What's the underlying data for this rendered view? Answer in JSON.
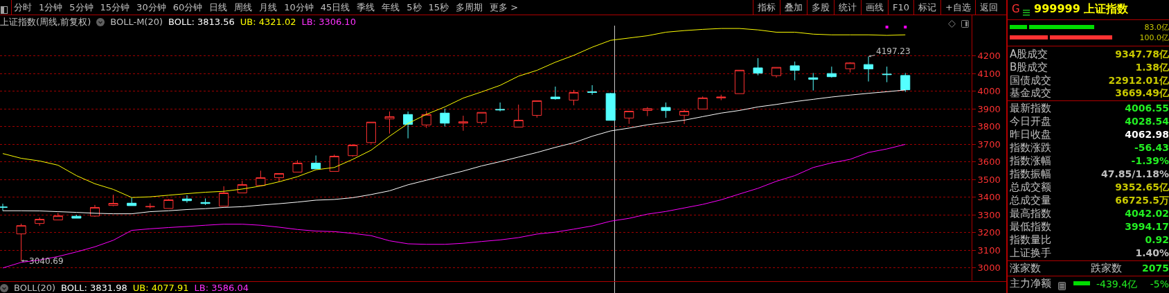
{
  "chart_data": [
    {
      "type": "other",
      "annotations": [
        "分时",
        "1分钟",
        "5分钟",
        "15分钟",
        "30分钟",
        "60分钟",
        "日线",
        "周线",
        "月线",
        "10分钟",
        "45日线",
        "季线",
        "年线",
        "5秒",
        "15秒",
        "多周期",
        "更多 >",
        "指标",
        "叠加",
        "多股",
        "统计",
        "画线",
        "F10",
        "标记",
        "+自选",
        "返回"
      ]
    },
    {
      "type": "candlestick",
      "title": "上证指数(周线,前复权)",
      "categories": [
        null,
        null,
        null,
        null,
        null,
        null,
        null,
        null,
        null,
        null,
        null,
        null,
        null,
        null,
        null,
        null,
        null,
        null,
        null,
        null,
        null,
        null,
        null,
        null,
        null,
        null,
        null,
        null,
        null,
        null,
        null,
        null,
        null,
        null,
        null,
        null,
        null,
        null,
        null,
        null,
        null,
        null,
        null,
        null,
        null,
        null,
        null,
        null,
        null,
        null
      ],
      "ylim": [
        2929,
        4431
      ],
      "yticks": [
        3000,
        3100,
        3200,
        3300,
        3400,
        3500,
        3600,
        3700,
        3800,
        3900,
        4000,
        4100,
        4200
      ],
      "grid": "y",
      "tick_labels": "y",
      "series": [
        {
          "type": "line",
          "color": "#ffff00",
          "values": [
            3648,
            3621,
            3606,
            3582,
            3523,
            3477,
            3445,
            3399,
            3403,
            3412,
            3421,
            3429,
            3434,
            3447,
            3464,
            3488,
            3517,
            3556,
            3569,
            3615,
            3667,
            3746,
            3818,
            3870,
            3912,
            3962,
            3997,
            4034,
            4086,
            4119,
            4165,
            4204,
            4250,
            4289,
            4302,
            4315,
            4335,
            4344,
            4351,
            4356,
            4356,
            4348,
            4335,
            4335,
            4324,
            4320,
            4320,
            4320,
            4317,
            4320
          ]
        },
        {
          "type": "line",
          "color": "#ffffff",
          "values": [
            3324,
            3324,
            3323,
            3319,
            3315,
            3310,
            3307,
            3307,
            3319,
            3324,
            3331,
            3336,
            3343,
            3347,
            3356,
            3364,
            3373,
            3384,
            3388,
            3398,
            3416,
            3437,
            3471,
            3497,
            3523,
            3549,
            3578,
            3602,
            3628,
            3654,
            3683,
            3709,
            3746,
            3776,
            3792,
            3811,
            3824,
            3837,
            3857,
            3877,
            3892,
            3912,
            3926,
            3942,
            3955,
            3968,
            3979,
            3989,
            3998,
            4008
          ]
        },
        {
          "type": "line",
          "color": "#ff00ff",
          "values": [
            3000,
            3032,
            3045,
            3065,
            3091,
            3120,
            3157,
            3213,
            3222,
            3229,
            3235,
            3242,
            3248,
            3248,
            3242,
            3231,
            3218,
            3209,
            3206,
            3196,
            3183,
            3154,
            3137,
            3134,
            3134,
            3140,
            3150,
            3159,
            3172,
            3192,
            3203,
            3220,
            3238,
            3265,
            3281,
            3305,
            3320,
            3340,
            3360,
            3386,
            3419,
            3451,
            3491,
            3523,
            3569,
            3595,
            3615,
            3654,
            3674,
            3700
          ]
        },
        {
          "type": "scatter",
          "color": "#ff00ff",
          "marker": "square",
          "values": [
            null,
            null,
            null,
            null,
            null,
            null,
            null,
            null,
            null,
            null,
            null,
            null,
            null,
            null,
            null,
            null,
            null,
            null,
            null,
            null,
            null,
            null,
            null,
            null,
            null,
            null,
            null,
            null,
            null,
            null,
            null,
            null,
            null,
            null,
            null,
            null,
            null,
            null,
            null,
            null,
            null,
            null,
            null,
            null,
            null,
            null,
            null,
            null,
            4364,
            4364
          ]
        },
        {
          "type": "candlestick",
          "ohlc": [
            [
              3345,
              3364,
              3324,
              3344
            ],
            [
              3193,
              3251,
              3040.69,
              3240
            ],
            [
              3252,
              3286,
              3239,
              3276
            ],
            [
              3272,
              3312,
              3272,
              3295
            ],
            [
              3293,
              3301,
              3282,
              3282
            ],
            [
              3294,
              3357,
              3290,
              3343
            ],
            [
              3354,
              3415,
              3350,
              3366
            ],
            [
              3367,
              3398,
              3353,
              3353
            ],
            [
              3346,
              3366,
              3337,
              3348
            ],
            [
              3337,
              3391,
              3337,
              3386
            ],
            [
              3391,
              3412,
              3370,
              3381
            ],
            [
              3371,
              3394,
              3357,
              3365
            ],
            [
              3350,
              3463,
              3350,
              3425
            ],
            [
              3425,
              3493,
              3425,
              3472
            ],
            [
              3467,
              3551,
              3467,
              3511
            ],
            [
              3511,
              3535,
              3489,
              3535
            ],
            [
              3543,
              3610,
              3543,
              3594
            ],
            [
              3594,
              3637,
              3561,
              3561
            ],
            [
              3547,
              3642,
              3547,
              3633
            ],
            [
              3636,
              3701,
              3631,
              3696
            ],
            [
              3710,
              3826,
              3704,
              3826
            ],
            [
              3844,
              3886,
              3761,
              3857
            ],
            [
              3869,
              3886,
              3734,
              3813
            ],
            [
              3810,
              3888,
              3793,
              3869
            ],
            [
              3877,
              3902,
              3801,
              3820
            ],
            [
              3820,
              3862,
              3777,
              3828
            ],
            [
              3824,
              3881,
              3813,
              3881
            ],
            [
              3898,
              3937,
              3887,
              3895
            ],
            [
              3798,
              3925,
              3798,
              3837
            ],
            [
              3864,
              3947,
              3851,
              3947
            ],
            [
              3968,
              4027,
              3953,
              3958
            ],
            [
              3950,
              4008,
              3921,
              3994
            ],
            [
              3998,
              4035,
              3981,
              3994
            ],
            [
              3988,
              3991,
              3836,
              3836
            ],
            [
              3849,
              3888,
              3816,
              3888
            ],
            [
              3892,
              3911,
              3860,
              3902
            ],
            [
              3909,
              3937,
              3850,
              3891
            ],
            [
              3865,
              3898,
              3815,
              3888
            ],
            [
              3900,
              3971,
              3900,
              3963
            ],
            [
              3963,
              3981,
              3950,
              3968
            ],
            [
              3987,
              4120,
              3987,
              4120
            ],
            [
              4133,
              4188,
              4091,
              4103
            ],
            [
              4089,
              4136,
              4078,
              4136
            ],
            [
              4145,
              4169,
              4063,
              4119
            ],
            [
              4077,
              4104,
              4005,
              4068
            ],
            [
              4101,
              4140,
              4078,
              4083
            ],
            [
              4128,
              4165,
              4107,
              4161
            ],
            [
              4152,
              4197.23,
              4056,
              4127
            ],
            [
              4098,
              4140,
              4052,
              4095
            ],
            [
              4090,
              4104,
              3997,
              4009
            ]
          ],
          "colors": [
            "#54ffff",
            "#ff3232",
            "#ff3232",
            "#ff3232",
            "#54ffff",
            "#ff3232",
            "#ff3232",
            "#54ffff",
            "#ff3232",
            "#ff3232",
            "#54ffff",
            "#54ffff",
            "#ff3232",
            "#ff3232",
            "#ff3232",
            "#ff3232",
            "#ff3232",
            "#54ffff",
            "#ff3232",
            "#ff3232",
            "#ff3232",
            "#ff3232",
            "#54ffff",
            "#ff3232",
            "#54ffff",
            "#ff3232",
            "#ff3232",
            "#54ffff",
            "#ff3232",
            "#ff3232",
            "#54ffff",
            "#ff3232",
            "#54ffff",
            "#54ffff",
            "#ff3232",
            "#ff3232",
            "#54ffff",
            "#ff3232",
            "#ff3232",
            "#ff3232",
            "#ff3232",
            "#54ffff",
            "#ff3232",
            "#54ffff",
            "#54ffff",
            "#54ffff",
            "#ff3232",
            "#54ffff",
            "#54ffff",
            "#54ffff"
          ]
        }
      ],
      "annotations": [
        "BOLL-M(20)",
        "BOLL: 3813.56",
        "UB: 4321.02",
        "LB: 3306.10",
        "BOLL(20)",
        "BOLL: 3831.98",
        "UB: 4077.91",
        "LB: 3586.04",
        {
          "text": "3040.69",
          "y": 3040.69
        },
        "4197.23"
      ]
    },
    {
      "type": "other",
      "title": "999999 上证指数",
      "annotations": [
        "G",
        "83.0亿",
        "100.0亿",
        "A股成交",
        "9347.78亿",
        "B股成交",
        "1.38亿",
        "国债成交",
        "22912.01亿",
        "基金成交",
        "3669.49亿",
        "最新指数",
        "4006.55",
        "今日开盘",
        "4028.54",
        "昨日收盘",
        "4062.98",
        "指数涨跌",
        "-56.43",
        "指数涨幅",
        "-1.39%",
        "指数振幅",
        "47.85/1.18%",
        "总成交额",
        "9352.65亿",
        "总成交量",
        "66725.5万",
        "最高指数",
        "4042.02",
        "最低指数",
        "3994.17",
        "指数量比",
        "0.92",
        "上证换手",
        "1.40%",
        "涨家数",
        "跌家数",
        "2075",
        "主力净额",
        "-439.4亿",
        "-5%"
      ]
    }
  ]
}
